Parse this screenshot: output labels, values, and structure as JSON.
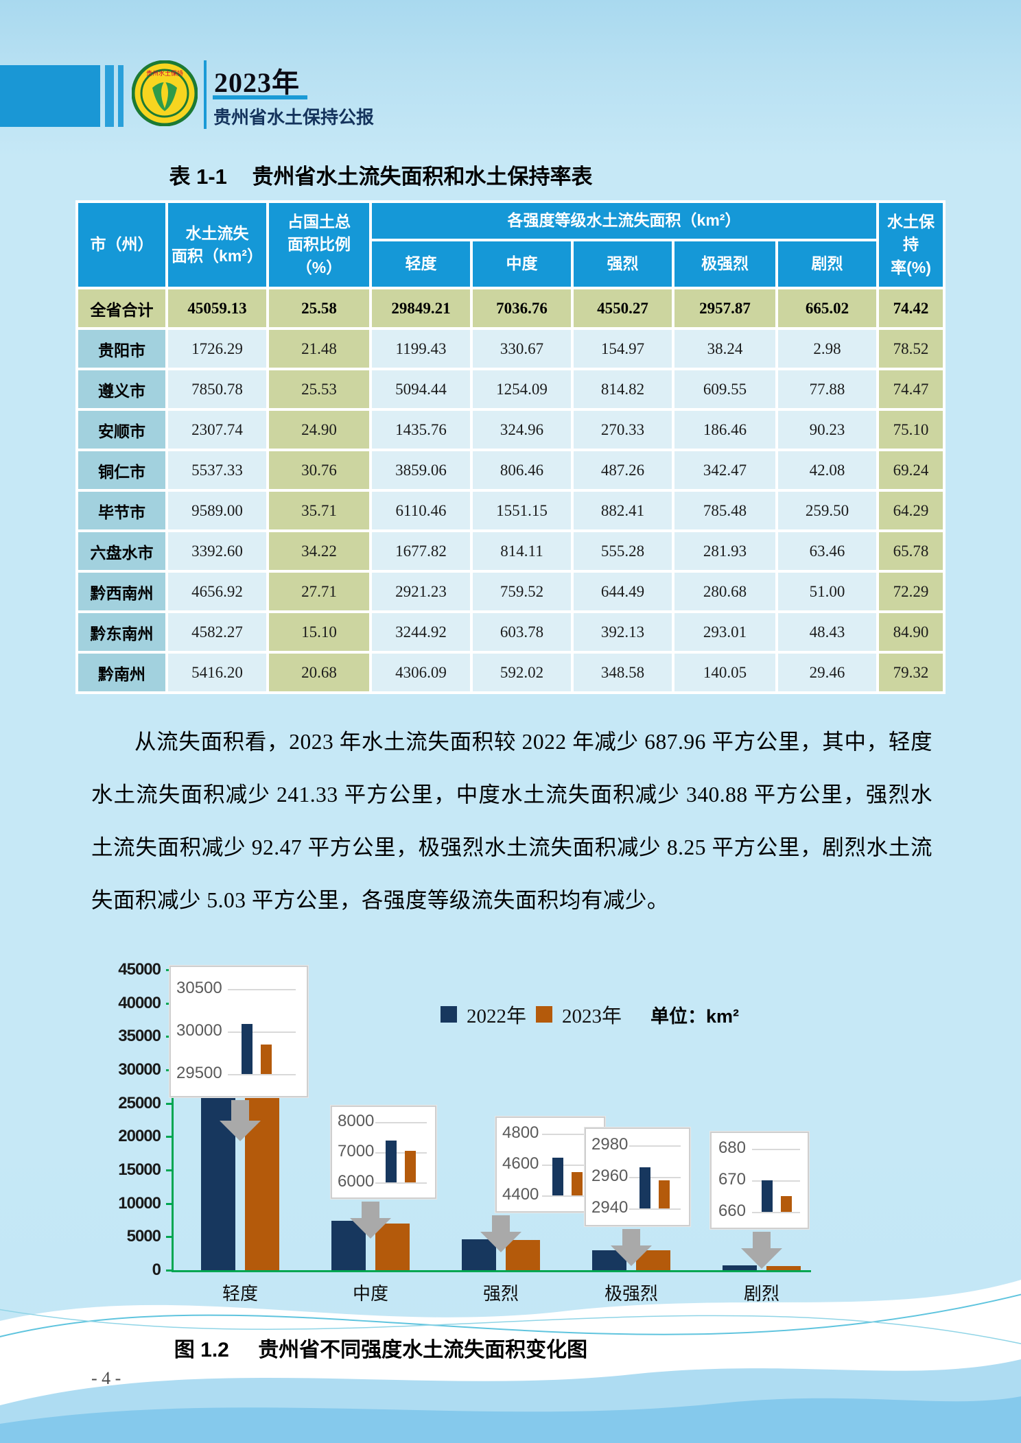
{
  "header": {
    "year_title": "2023年",
    "bulletin_title": "贵州省水土保持公报"
  },
  "table": {
    "title_label": "表 1-1",
    "title_text": "贵州省水土流失面积和水土保持率表",
    "headers": {
      "region": "市（州）",
      "area": "水土流失\n面积（km²）",
      "ratio": "占国土总\n面积比例\n（%）",
      "intensity_group": "各强度等级水土流失面积（km²）",
      "levels": [
        "轻度",
        "中度",
        "强烈",
        "极强烈",
        "剧烈"
      ],
      "rate": "水土保持\n率(%)"
    },
    "rows": [
      {
        "region": "全省合计",
        "is_total": true,
        "values": [
          "45059.13",
          "25.58",
          "29849.21",
          "7036.76",
          "4550.27",
          "2957.87",
          "665.02",
          "74.42"
        ]
      },
      {
        "region": "贵阳市",
        "is_total": false,
        "values": [
          "1726.29",
          "21.48",
          "1199.43",
          "330.67",
          "154.97",
          "38.24",
          "2.98",
          "78.52"
        ]
      },
      {
        "region": "遵义市",
        "is_total": false,
        "values": [
          "7850.78",
          "25.53",
          "5094.44",
          "1254.09",
          "814.82",
          "609.55",
          "77.88",
          "74.47"
        ]
      },
      {
        "region": "安顺市",
        "is_total": false,
        "values": [
          "2307.74",
          "24.90",
          "1435.76",
          "324.96",
          "270.33",
          "186.46",
          "90.23",
          "75.10"
        ]
      },
      {
        "region": "铜仁市",
        "is_total": false,
        "values": [
          "5537.33",
          "30.76",
          "3859.06",
          "806.46",
          "487.26",
          "342.47",
          "42.08",
          "69.24"
        ]
      },
      {
        "region": "毕节市",
        "is_total": false,
        "values": [
          "9589.00",
          "35.71",
          "6110.46",
          "1551.15",
          "882.41",
          "785.48",
          "259.50",
          "64.29"
        ]
      },
      {
        "region": "六盘水市",
        "is_total": false,
        "values": [
          "3392.60",
          "34.22",
          "1677.82",
          "814.11",
          "555.28",
          "281.93",
          "63.46",
          "65.78"
        ]
      },
      {
        "region": "黔西南州",
        "is_total": false,
        "values": [
          "4656.92",
          "27.71",
          "2921.23",
          "759.52",
          "644.49",
          "280.68",
          "51.00",
          "72.29"
        ]
      },
      {
        "region": "黔东南州",
        "is_total": false,
        "values": [
          "4582.27",
          "15.10",
          "3244.92",
          "603.78",
          "392.13",
          "293.01",
          "48.43",
          "84.90"
        ]
      },
      {
        "region": "黔南州",
        "is_total": false,
        "values": [
          "5416.20",
          "20.68",
          "4306.09",
          "592.02",
          "348.58",
          "140.05",
          "29.46",
          "79.32"
        ]
      }
    ]
  },
  "paragraph": "从流失面积看，2023 年水土流失面积较 2022 年减少 687.96 平方公里，其中，轻度水土流失面积减少 241.33 平方公里，中度水土流失面积减少 340.88 平方公里，强烈水土流失面积减少 92.47 平方公里，极强烈水土流失面积减少 8.25 平方公里，剧烈水土流失面积减少 5.03 平方公里，各强度等级流失面积均有减少。",
  "chart_data": {
    "type": "bar",
    "title": "贵州省不同强度水土流失面积变化图",
    "unit_label": "单位：km²",
    "categories": [
      "轻度",
      "中度",
      "强烈",
      "极强烈",
      "剧烈"
    ],
    "series": [
      {
        "name": "2022年",
        "color": "#17375e",
        "values": [
          30090.54,
          7377.64,
          4642.74,
          2966.12,
          670.05
        ]
      },
      {
        "name": "2023年",
        "color": "#b45a0b",
        "values": [
          29849.21,
          7036.76,
          4550.27,
          2957.87,
          665.02
        ]
      }
    ],
    "ylim": [
      0,
      45000
    ],
    "ytick_step": 5000,
    "grid": false,
    "legend_position": "top",
    "axis_color": "#00a651",
    "callouts": [
      {
        "ticks": [
          30500,
          30000,
          29500
        ]
      },
      {
        "ticks": [
          8000,
          7000,
          6000
        ]
      },
      {
        "ticks": [
          4800,
          4600,
          4400
        ]
      },
      {
        "ticks": [
          2980,
          2960,
          2940
        ]
      },
      {
        "ticks": [
          680,
          670,
          660
        ]
      }
    ]
  },
  "figure": {
    "caption_label": "图 1.2",
    "caption_text": "贵州省不同强度水土流失面积变化图"
  },
  "page_number": "- 4 -"
}
